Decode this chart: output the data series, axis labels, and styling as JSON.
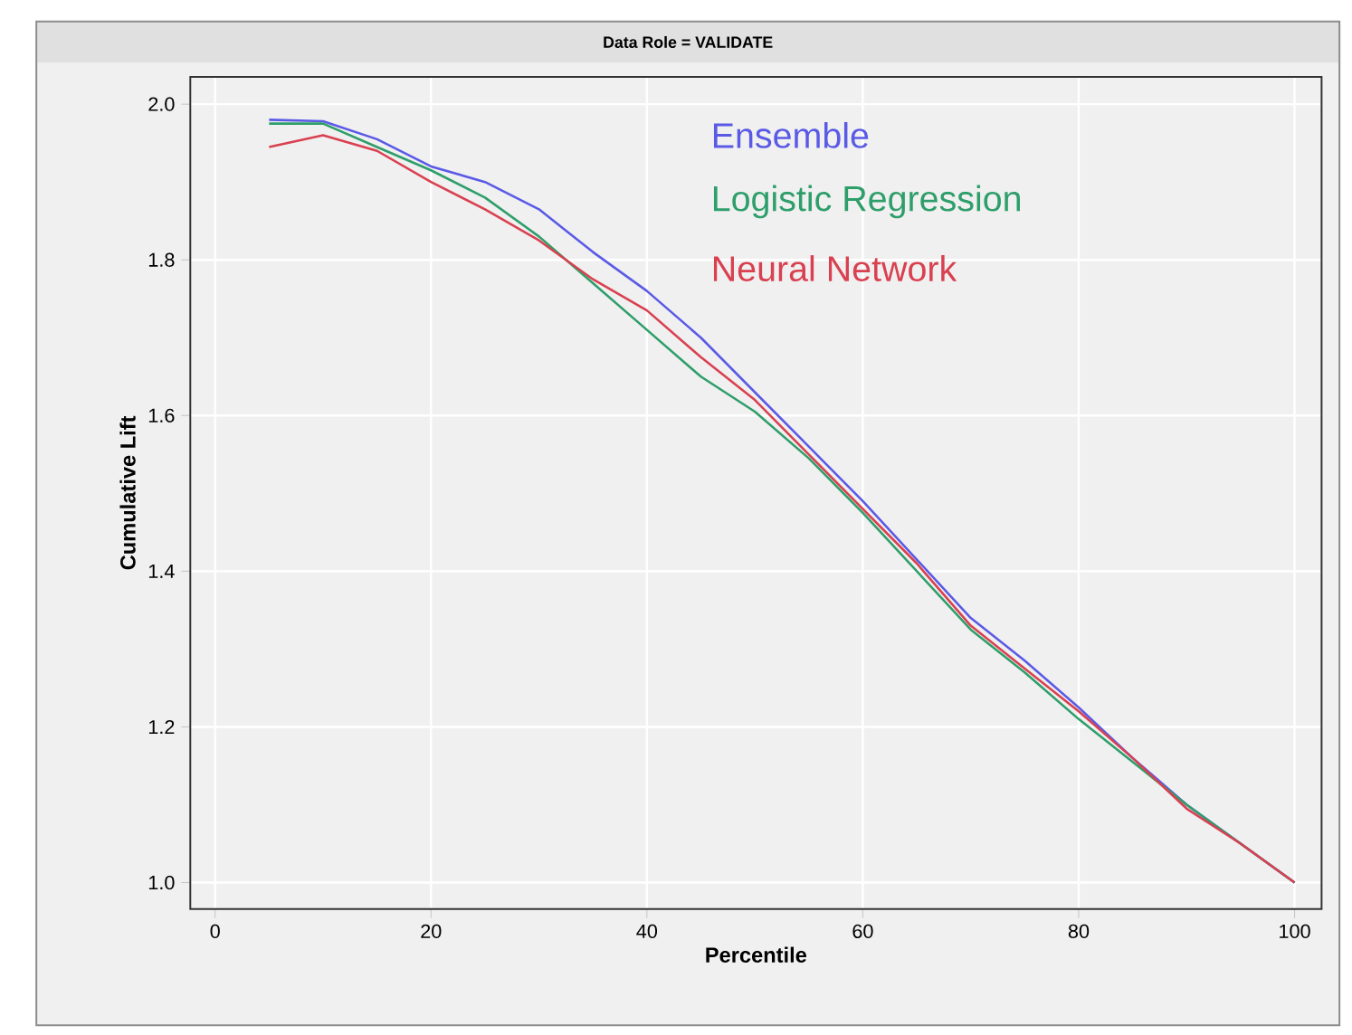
{
  "chart_data": {
    "type": "line",
    "title": "Data Role = VALIDATE",
    "xlabel": "Percentile",
    "ylabel": "Cumulative Lift",
    "x": [
      5,
      10,
      15,
      20,
      25,
      30,
      35,
      40,
      45,
      50,
      55,
      60,
      65,
      70,
      75,
      80,
      85,
      90,
      95,
      100
    ],
    "series": [
      {
        "name": "Ensemble",
        "color": "#5a5ae6",
        "values": [
          1.98,
          1.978,
          1.955,
          1.92,
          1.9,
          1.865,
          1.81,
          1.76,
          1.7,
          1.63,
          1.56,
          1.49,
          1.415,
          1.34,
          1.285,
          1.225,
          1.16,
          1.1,
          1.05,
          1.0
        ]
      },
      {
        "name": "Logistic Regression",
        "color": "#2e9e6a",
        "values": [
          1.975,
          1.975,
          1.945,
          1.915,
          1.88,
          1.83,
          1.77,
          1.71,
          1.65,
          1.605,
          1.545,
          1.475,
          1.4,
          1.325,
          1.27,
          1.21,
          1.155,
          1.1,
          1.05,
          1.0
        ]
      },
      {
        "name": "Neural Network",
        "color": "#d94050",
        "values": [
          1.945,
          1.96,
          1.94,
          1.9,
          1.865,
          1.825,
          1.775,
          1.735,
          1.675,
          1.62,
          1.55,
          1.48,
          1.41,
          1.33,
          1.275,
          1.22,
          1.16,
          1.095,
          1.05,
          1.0
        ]
      }
    ],
    "xlim": [
      -2.3,
      102.5
    ],
    "ylim": [
      0.966,
      2.035
    ],
    "xticks": [
      0,
      20,
      40,
      60,
      80,
      100
    ],
    "yticks": [
      {
        "value": 1.0,
        "label": "1.0"
      },
      {
        "value": 1.2,
        "label": "1.2"
      },
      {
        "value": 1.4,
        "label": "1.4"
      },
      {
        "value": 1.6,
        "label": "1.6"
      },
      {
        "value": 1.8,
        "label": "1.8"
      },
      {
        "value": 2.0,
        "label": "2.0"
      }
    ],
    "grid": true,
    "legend": "top right",
    "marker": "none",
    "line_style": "solid"
  }
}
